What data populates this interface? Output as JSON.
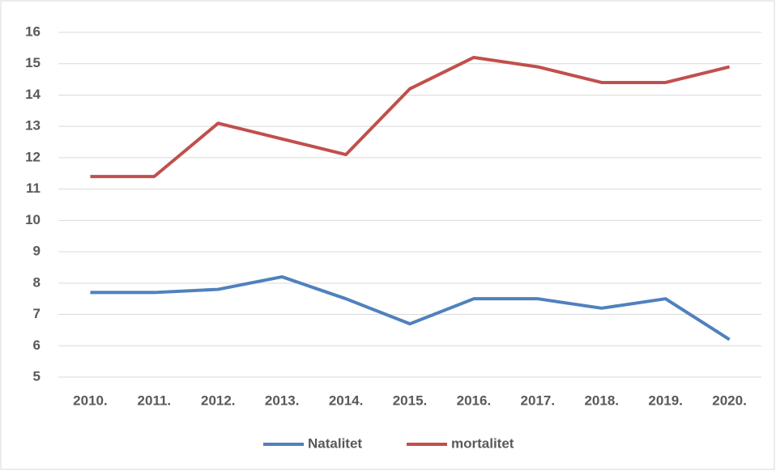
{
  "chart_data": {
    "type": "line",
    "categories": [
      "2010.",
      "2011.",
      "2012.",
      "2013.",
      "2014.",
      "2015.",
      "2016.",
      "2017.",
      "2018.",
      "2019.",
      "2020."
    ],
    "series": [
      {
        "name": "Natalitet",
        "color": "#4f81bd",
        "values": [
          7.7,
          7.7,
          7.8,
          8.2,
          7.5,
          6.7,
          7.5,
          7.5,
          7.2,
          7.5,
          6.2
        ]
      },
      {
        "name": "mortalitet",
        "color": "#c0504d",
        "values": [
          11.4,
          11.4,
          13.1,
          12.6,
          12.1,
          14.2,
          15.2,
          14.9,
          14.4,
          14.4,
          14.9
        ]
      }
    ],
    "ylim": [
      5,
      16
    ],
    "yticks": [
      5,
      6,
      7,
      8,
      9,
      10,
      11,
      12,
      13,
      14,
      15,
      16
    ],
    "grid": true,
    "legend": "bottom"
  }
}
